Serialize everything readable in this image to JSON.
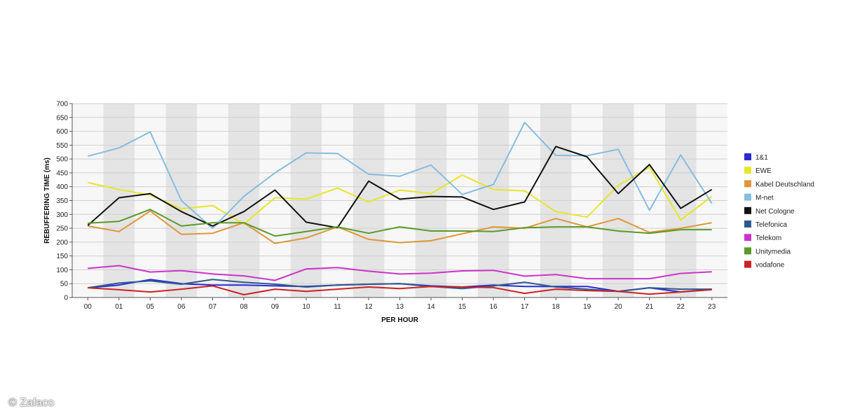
{
  "credit": "© Zafaco",
  "chart_data": {
    "type": "line",
    "xlabel": "PER HOUR",
    "ylabel": "REBUFFERING TIME (ms)",
    "ylim": [
      0,
      700
    ],
    "yticks": [
      0,
      50,
      100,
      150,
      200,
      250,
      300,
      350,
      400,
      450,
      500,
      550,
      600,
      650,
      700
    ],
    "categories": [
      "00",
      "01",
      "05",
      "06",
      "07",
      "08",
      "09",
      "10",
      "11",
      "12",
      "13",
      "14",
      "15",
      "16",
      "17",
      "18",
      "19",
      "20",
      "21",
      "22",
      "23"
    ],
    "grid": true,
    "legend_position": "right",
    "series": [
      {
        "name": "1&1",
        "color": "#2b2bd6",
        "values": [
          35,
          45,
          65,
          50,
          45,
          45,
          42,
          40,
          45,
          48,
          50,
          42,
          38,
          45,
          40,
          40,
          40,
          22,
          35,
          20,
          30
        ]
      },
      {
        "name": "EWE",
        "color": "#e6e62a",
        "values": [
          415,
          390,
          370,
          320,
          332,
          265,
          360,
          355,
          395,
          345,
          388,
          375,
          442,
          390,
          385,
          310,
          290,
          405,
          470,
          280,
          365
        ]
      },
      {
        "name": "Kabel Deutschland",
        "color": "#e0963a",
        "values": [
          258,
          238,
          312,
          228,
          232,
          270,
          195,
          215,
          255,
          210,
          198,
          205,
          230,
          255,
          250,
          285,
          255,
          285,
          235,
          250,
          270
        ]
      },
      {
        "name": "M-net",
        "color": "#86bde0",
        "values": [
          510,
          540,
          598,
          350,
          250,
          365,
          450,
          522,
          520,
          445,
          438,
          478,
          372,
          408,
          632,
          513,
          512,
          535,
          315,
          515,
          340
        ]
      },
      {
        "name": "Net Cologne",
        "color": "#111111",
        "values": [
          260,
          360,
          375,
          310,
          258,
          310,
          388,
          272,
          252,
          420,
          355,
          365,
          363,
          318,
          345,
          545,
          508,
          375,
          480,
          322,
          390
        ]
      },
      {
        "name": "Telefonica",
        "color": "#2c5a8c",
        "values": [
          35,
          52,
          60,
          48,
          65,
          55,
          48,
          38,
          45,
          48,
          50,
          40,
          32,
          42,
          55,
          38,
          30,
          22,
          35,
          30,
          30
        ]
      },
      {
        "name": "Telekom",
        "color": "#cc33cc",
        "values": [
          105,
          115,
          92,
          97,
          85,
          78,
          62,
          103,
          108,
          95,
          85,
          88,
          96,
          98,
          77,
          83,
          68,
          68,
          68,
          87,
          93
        ]
      },
      {
        "name": "Unitymedia",
        "color": "#5a9a2a",
        "values": [
          268,
          275,
          318,
          258,
          270,
          270,
          222,
          238,
          255,
          232,
          255,
          240,
          240,
          238,
          252,
          255,
          255,
          240,
          232,
          245,
          245
        ]
      },
      {
        "name": "vodafone",
        "color": "#cc2222",
        "values": [
          35,
          28,
          20,
          30,
          42,
          10,
          30,
          22,
          30,
          38,
          32,
          40,
          38,
          36,
          15,
          30,
          25,
          22,
          12,
          20,
          28
        ]
      }
    ]
  }
}
